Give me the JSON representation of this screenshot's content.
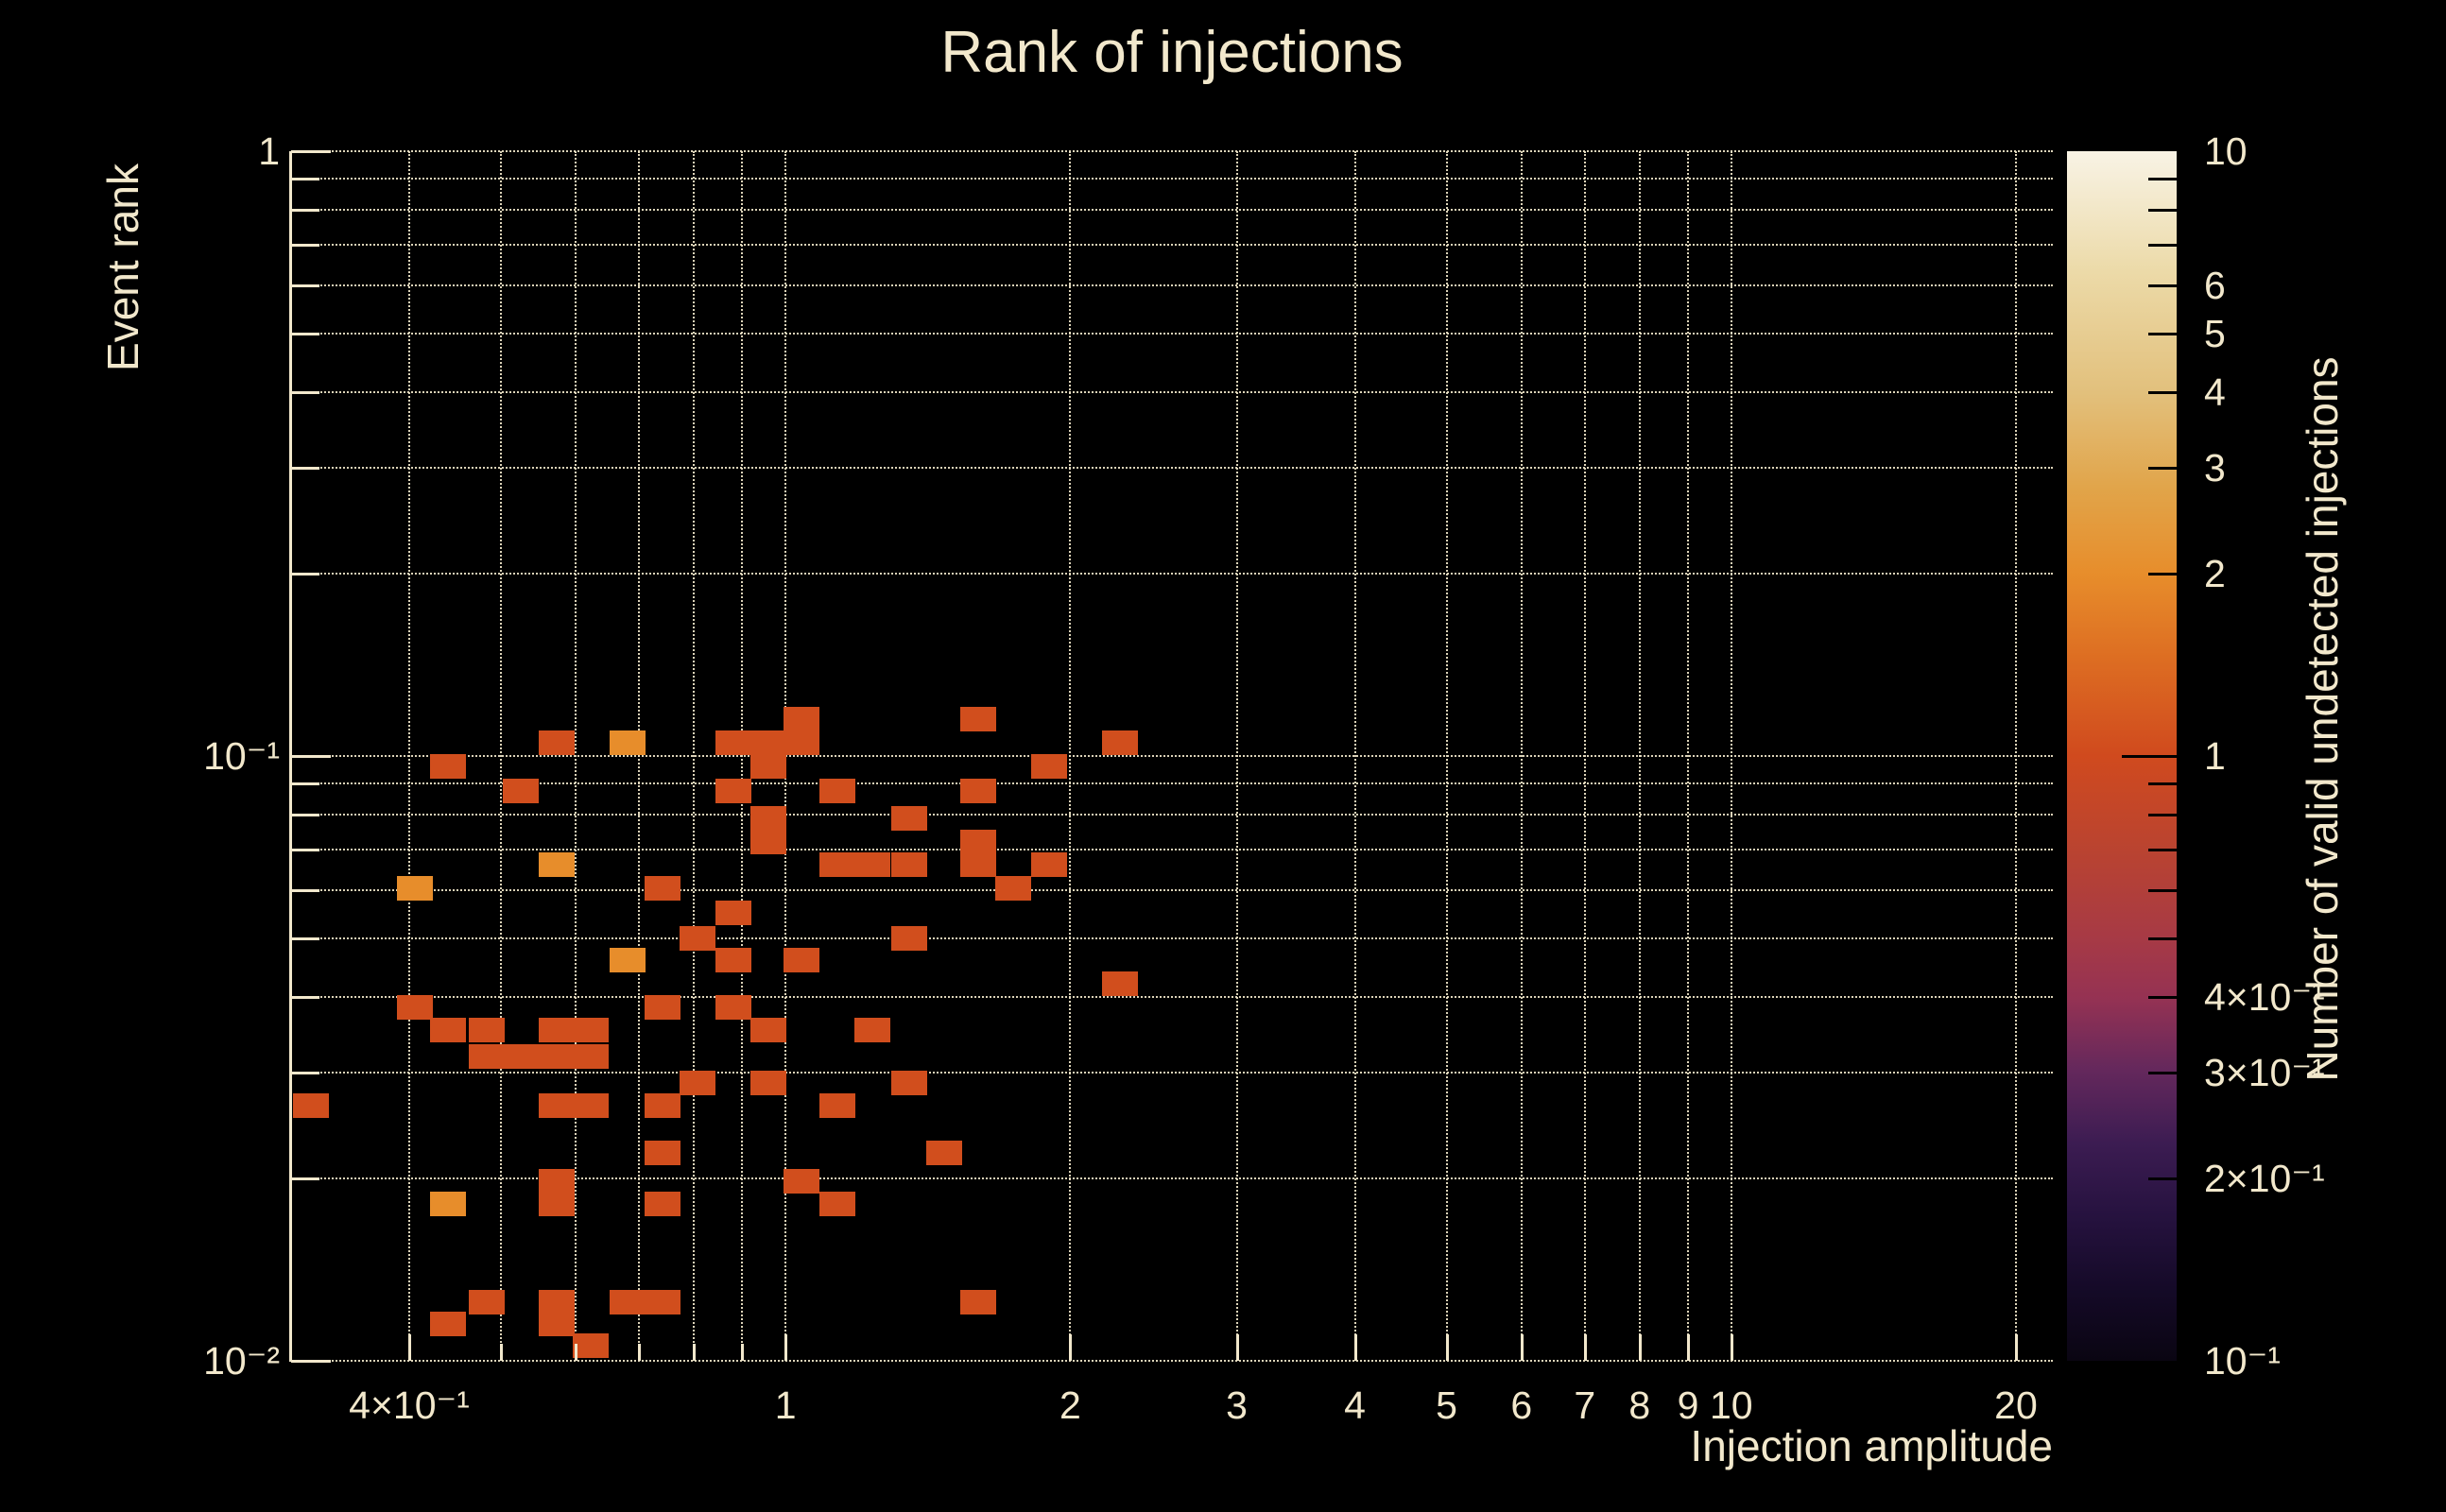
{
  "title": "Rank of injections",
  "colors": {
    "background": "#000000",
    "text": "#f2e8cc",
    "grid": "#efe5c8",
    "frame": "#f2e8cc",
    "axis_tick": "#f2e8cc",
    "colorbar_tick": "#000000",
    "value_colors": {
      "1": "#d14e1d",
      "2": "#e78d2b"
    },
    "colorbar_gradient": [
      {
        "stop": 0.0,
        "color": "#0a0512"
      },
      {
        "stop": 0.06,
        "color": "#150a28"
      },
      {
        "stop": 0.12,
        "color": "#26123f"
      },
      {
        "stop": 0.18,
        "color": "#3c1c52"
      },
      {
        "stop": 0.24,
        "color": "#64285c"
      },
      {
        "stop": 0.3,
        "color": "#953253"
      },
      {
        "stop": 0.35,
        "color": "#a73a45"
      },
      {
        "stop": 0.42,
        "color": "#b94331"
      },
      {
        "stop": 0.5,
        "color": "#d04a1e"
      },
      {
        "stop": 0.58,
        "color": "#dd6d22"
      },
      {
        "stop": 0.65,
        "color": "#e78d2b"
      },
      {
        "stop": 0.72,
        "color": "#e1a449"
      },
      {
        "stop": 0.8,
        "color": "#e2c07c"
      },
      {
        "stop": 0.9,
        "color": "#ecdaa8"
      },
      {
        "stop": 1.0,
        "color": "#f8f3e5"
      }
    ]
  },
  "chart_data": {
    "type": "heatmap",
    "title": "Rank of injections",
    "xlabel": "Injection amplitude",
    "ylabel": "Event rank",
    "zlabel": "Number of valid undetected injections",
    "xscale": "log",
    "yscale": "log",
    "zscale": "log",
    "xlim": [
      0.3,
      21.88
    ],
    "ylim": [
      0.01,
      1
    ],
    "zlim": [
      0.1,
      10
    ],
    "grid": true,
    "legend_position": "right-colorbar",
    "x_gridlines": [
      0.4,
      0.5,
      0.6,
      0.7,
      0.8,
      0.9,
      1,
      2,
      3,
      4,
      5,
      6,
      7,
      8,
      9,
      10,
      20
    ],
    "y_gridlines": [
      1,
      0.9,
      0.8,
      0.7,
      0.6,
      0.5,
      0.4,
      0.3,
      0.2,
      0.1,
      0.09,
      0.08,
      0.07,
      0.06,
      0.05,
      0.04,
      0.03,
      0.02,
      0.01
    ],
    "x_tick_labels": [
      {
        "v": 0.4,
        "label": "4×10⁻¹"
      },
      {
        "v": 1,
        "label": "1"
      },
      {
        "v": 2,
        "label": "2"
      },
      {
        "v": 3,
        "label": "3"
      },
      {
        "v": 4,
        "label": "4"
      },
      {
        "v": 5,
        "label": "5"
      },
      {
        "v": 6,
        "label": "6"
      },
      {
        "v": 7,
        "label": "7"
      },
      {
        "v": 8,
        "label": "8"
      },
      {
        "v": 9,
        "label": "9"
      },
      {
        "v": 10,
        "label": "10"
      },
      {
        "v": 20,
        "label": "20"
      }
    ],
    "y_tick_labels": [
      {
        "v": 1,
        "label": "1"
      },
      {
        "v": 0.1,
        "label": "10⁻¹"
      },
      {
        "v": 0.01,
        "label": "10⁻²"
      }
    ],
    "z_tick_labels": [
      {
        "v": 10,
        "label": "10"
      },
      {
        "v": 6,
        "label": "6"
      },
      {
        "v": 5,
        "label": "5"
      },
      {
        "v": 4,
        "label": "4"
      },
      {
        "v": 3,
        "label": "3"
      },
      {
        "v": 2,
        "label": "2"
      },
      {
        "v": 1,
        "label": "1"
      },
      {
        "v": 0.4,
        "label": "4×10⁻¹"
      },
      {
        "v": 0.3,
        "label": "3×10⁻¹"
      },
      {
        "v": 0.2,
        "label": "2×10⁻¹"
      },
      {
        "v": 0.1,
        "label": "10⁻¹"
      }
    ],
    "z_tick_marks": [
      0.2,
      0.3,
      0.4,
      0.5,
      0.6,
      0.7,
      0.8,
      0.9,
      1,
      2,
      3,
      4,
      5,
      6,
      7,
      8,
      9
    ],
    "cells": [
      [
        1.04,
        0.115,
        1
      ],
      [
        1.6,
        0.115,
        1
      ],
      [
        0.573,
        0.105,
        1
      ],
      [
        0.68,
        0.105,
        2
      ],
      [
        0.88,
        0.105,
        1
      ],
      [
        0.96,
        0.105,
        1
      ],
      [
        1.04,
        0.105,
        1
      ],
      [
        2.26,
        0.105,
        1
      ],
      [
        0.44,
        0.096,
        1
      ],
      [
        0.96,
        0.096,
        1
      ],
      [
        1.9,
        0.096,
        1
      ],
      [
        0.525,
        0.0875,
        1
      ],
      [
        0.88,
        0.0875,
        1
      ],
      [
        1.135,
        0.0875,
        1
      ],
      [
        1.6,
        0.0875,
        1
      ],
      [
        0.96,
        0.079,
        1
      ],
      [
        1.35,
        0.079,
        1
      ],
      [
        0.96,
        0.072,
        1
      ],
      [
        1.6,
        0.072,
        1
      ],
      [
        0.573,
        0.066,
        2
      ],
      [
        1.135,
        0.066,
        1
      ],
      [
        1.236,
        0.066,
        1
      ],
      [
        1.35,
        0.066,
        1
      ],
      [
        1.6,
        0.066,
        1
      ],
      [
        1.9,
        0.066,
        1
      ],
      [
        0.406,
        0.0605,
        2
      ],
      [
        0.741,
        0.0605,
        1
      ],
      [
        1.74,
        0.0605,
        1
      ],
      [
        0.88,
        0.055,
        1
      ],
      [
        0.807,
        0.05,
        1
      ],
      [
        1.35,
        0.05,
        1
      ],
      [
        0.68,
        0.046,
        2
      ],
      [
        0.88,
        0.046,
        1
      ],
      [
        1.04,
        0.046,
        1
      ],
      [
        2.26,
        0.042,
        1
      ],
      [
        0.406,
        0.0384,
        1
      ],
      [
        0.741,
        0.0384,
        1
      ],
      [
        0.88,
        0.0384,
        1
      ],
      [
        0.44,
        0.0352,
        1
      ],
      [
        0.483,
        0.0352,
        1
      ],
      [
        0.573,
        0.0352,
        1
      ],
      [
        0.622,
        0.0352,
        1
      ],
      [
        0.96,
        0.0352,
        1
      ],
      [
        1.236,
        0.0352,
        1
      ],
      [
        0.483,
        0.0318,
        1
      ],
      [
        0.525,
        0.0318,
        1
      ],
      [
        0.573,
        0.0318,
        1
      ],
      [
        0.622,
        0.0318,
        1
      ],
      [
        0.807,
        0.0288,
        1
      ],
      [
        0.96,
        0.0288,
        1
      ],
      [
        1.35,
        0.0288,
        1
      ],
      [
        0.315,
        0.0264,
        1
      ],
      [
        0.573,
        0.0264,
        1
      ],
      [
        0.622,
        0.0264,
        1
      ],
      [
        0.741,
        0.0264,
        1
      ],
      [
        1.135,
        0.0264,
        1
      ],
      [
        0.741,
        0.0221,
        1
      ],
      [
        1.47,
        0.0221,
        1
      ],
      [
        0.573,
        0.0198,
        1
      ],
      [
        1.04,
        0.0198,
        1
      ],
      [
        0.44,
        0.0182,
        2
      ],
      [
        0.573,
        0.0182,
        1
      ],
      [
        0.741,
        0.0182,
        1
      ],
      [
        1.135,
        0.0182,
        1
      ],
      [
        0.483,
        0.0125,
        1
      ],
      [
        0.573,
        0.0125,
        1
      ],
      [
        0.68,
        0.0125,
        1
      ],
      [
        0.741,
        0.0125,
        1
      ],
      [
        1.6,
        0.0125,
        1
      ],
      [
        0.44,
        0.0115,
        1
      ],
      [
        0.573,
        0.0115,
        1
      ],
      [
        0.622,
        0.0106,
        1
      ]
    ]
  }
}
